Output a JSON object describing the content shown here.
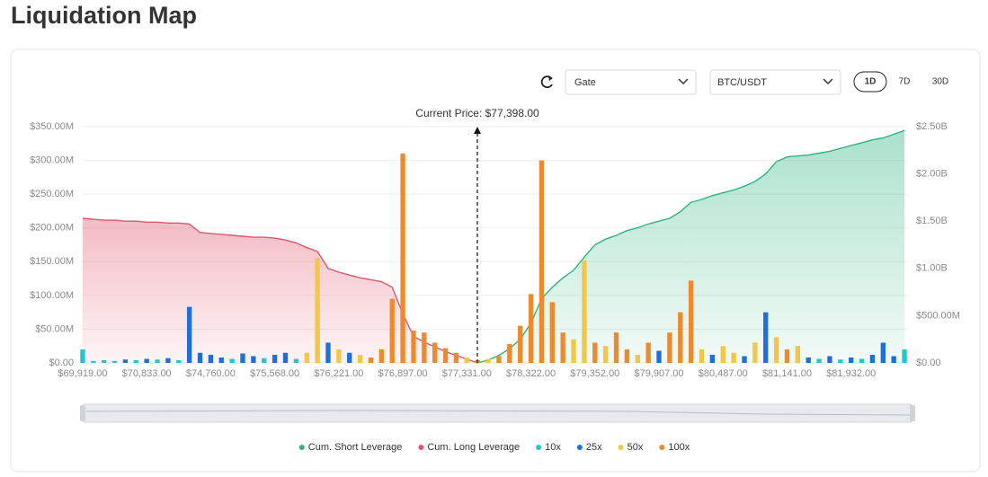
{
  "page_title": "Liquidation Map",
  "controls": {
    "exchange": "Gate",
    "pair": "BTC/USDT",
    "ranges": [
      "1D",
      "7D",
      "30D"
    ],
    "selected_range": "1D"
  },
  "chart_data": {
    "type": "bar",
    "annotation": "Current Price: $77,398.00",
    "categories": [
      "$69,919.00",
      null,
      null,
      null,
      null,
      null,
      "$70,833.00",
      null,
      null,
      null,
      null,
      null,
      "$74,760.00",
      null,
      null,
      null,
      null,
      null,
      "$75,568.00",
      null,
      null,
      null,
      null,
      null,
      "$76,221.00",
      null,
      null,
      null,
      null,
      null,
      "$76,897.00",
      null,
      null,
      null,
      null,
      null,
      "$77,331.00",
      null,
      null,
      null,
      null,
      null,
      "$78,322.00",
      null,
      null,
      null,
      null,
      null,
      "$79,352.00",
      null,
      null,
      null,
      null,
      null,
      "$79,907.00",
      null,
      null,
      null,
      null,
      null,
      "$80,487.00",
      null,
      null,
      null,
      null,
      null,
      "$81,141.00",
      null,
      null,
      null,
      null,
      null,
      "$81,932.00",
      null,
      null,
      null,
      null,
      null
    ],
    "ylim": [
      0,
      350000000
    ],
    "yticks": [
      {
        "value": 0,
        "label": "$0.00"
      },
      {
        "value": 50000000,
        "label": "$50.00M"
      },
      {
        "value": 100000000,
        "label": "$100.00M"
      },
      {
        "value": 150000000,
        "label": "$150.00M"
      },
      {
        "value": 200000000,
        "label": "$200.00M"
      },
      {
        "value": 250000000,
        "label": "$250.00M"
      },
      {
        "value": 300000000,
        "label": "$300.00M"
      },
      {
        "value": 350000000,
        "label": "$350.00M"
      }
    ],
    "y2lim": [
      0,
      2500000000
    ],
    "y2ticks": [
      {
        "value": 0,
        "label": "$0.00"
      },
      {
        "value": 500000000,
        "label": "$500.00M"
      },
      {
        "value": 1000000000,
        "label": "$1.00B"
      },
      {
        "value": 1500000000,
        "label": "$1.50B"
      },
      {
        "value": 2000000000,
        "label": "$2.00B"
      },
      {
        "value": 2500000000,
        "label": "$2.50B"
      }
    ],
    "grid": true,
    "legend": "bottom",
    "series": [
      {
        "name": "Cum. Short Leverage",
        "type": "area",
        "axis": "y2",
        "color": "#2db57f",
        "values": [
          null,
          null,
          null,
          null,
          null,
          null,
          null,
          null,
          null,
          null,
          null,
          null,
          null,
          null,
          null,
          null,
          null,
          null,
          null,
          null,
          null,
          null,
          null,
          null,
          null,
          null,
          null,
          null,
          null,
          null,
          null,
          null,
          null,
          null,
          null,
          null,
          null,
          0,
          30000000,
          80000000,
          150000000,
          250000000,
          420000000,
          680000000,
          800000000,
          900000000,
          980000000,
          1120000000,
          1250000000,
          1310000000,
          1350000000,
          1400000000,
          1430000000,
          1470000000,
          1500000000,
          1530000000,
          1600000000,
          1700000000,
          1730000000,
          1770000000,
          1800000000,
          1830000000,
          1870000000,
          1920000000,
          2000000000,
          2130000000,
          2180000000,
          2190000000,
          2200000000,
          2220000000,
          2240000000,
          2270000000,
          2300000000,
          2330000000,
          2360000000,
          2380000000,
          2420000000,
          2460000000
        ]
      },
      {
        "name": "Cum. Long Leverage",
        "type": "area",
        "axis": "y2",
        "color": "#e0566a",
        "values": [
          1530000000,
          1520000000,
          1510000000,
          1510000000,
          1500000000,
          1500000000,
          1490000000,
          1490000000,
          1480000000,
          1480000000,
          1470000000,
          1380000000,
          1370000000,
          1360000000,
          1350000000,
          1340000000,
          1330000000,
          1330000000,
          1320000000,
          1300000000,
          1270000000,
          1220000000,
          1180000000,
          1000000000,
          960000000,
          930000000,
          900000000,
          880000000,
          860000000,
          800000000,
          520000000,
          280000000,
          220000000,
          170000000,
          120000000,
          80000000,
          40000000,
          0,
          null,
          null,
          null,
          null,
          null,
          null,
          null,
          null,
          null,
          null,
          null,
          null,
          null,
          null,
          null,
          null,
          null,
          null,
          null,
          null,
          null,
          null,
          null,
          null,
          null,
          null,
          null,
          null,
          null,
          null,
          null,
          null,
          null,
          null,
          null,
          null,
          null,
          null,
          null,
          null
        ]
      },
      {
        "name": "10x",
        "type": "bar",
        "color": "#22c6d3",
        "values": [
          20000000,
          3000000,
          4000000,
          3000000,
          null,
          4000000,
          null,
          5000000,
          null,
          4000000,
          null,
          null,
          null,
          null,
          6000000,
          null,
          null,
          7000000,
          null,
          null,
          6000000,
          null,
          null,
          null,
          null,
          null,
          null,
          null,
          null,
          null,
          null,
          null,
          null,
          null,
          null,
          null,
          null,
          null,
          null,
          null,
          null,
          null,
          null,
          null,
          null,
          null,
          null,
          null,
          null,
          null,
          null,
          null,
          null,
          null,
          null,
          null,
          null,
          null,
          null,
          null,
          null,
          null,
          null,
          null,
          null,
          null,
          null,
          null,
          null,
          6000000,
          null,
          5000000,
          null,
          6000000,
          null,
          null,
          null,
          20000000
        ]
      },
      {
        "name": "25x",
        "type": "bar",
        "color": "#1f6fd6",
        "values": [
          null,
          null,
          null,
          null,
          5000000,
          null,
          6000000,
          null,
          7000000,
          null,
          83000000,
          15000000,
          12000000,
          8000000,
          null,
          14000000,
          10000000,
          null,
          12000000,
          15000000,
          null,
          null,
          null,
          30000000,
          null,
          15000000,
          null,
          null,
          null,
          null,
          null,
          null,
          null,
          null,
          null,
          null,
          null,
          null,
          null,
          null,
          null,
          null,
          null,
          null,
          null,
          null,
          null,
          null,
          null,
          null,
          null,
          null,
          null,
          null,
          18000000,
          null,
          null,
          null,
          null,
          12000000,
          null,
          null,
          10000000,
          null,
          75000000,
          null,
          null,
          null,
          8000000,
          null,
          10000000,
          null,
          8000000,
          null,
          12000000,
          30000000,
          10000000,
          null
        ]
      },
      {
        "name": "50x",
        "type": "bar",
        "color": "#f4c647",
        "values": [
          null,
          null,
          null,
          null,
          null,
          null,
          null,
          null,
          null,
          null,
          null,
          null,
          null,
          null,
          null,
          null,
          null,
          null,
          null,
          null,
          null,
          15000000,
          155000000,
          null,
          20000000,
          null,
          12000000,
          null,
          null,
          null,
          null,
          null,
          null,
          null,
          null,
          null,
          8000000,
          null,
          6000000,
          null,
          null,
          null,
          null,
          null,
          null,
          null,
          35000000,
          152000000,
          null,
          25000000,
          null,
          null,
          12000000,
          null,
          null,
          null,
          null,
          null,
          20000000,
          null,
          25000000,
          15000000,
          null,
          30000000,
          null,
          38000000,
          null,
          25000000,
          null,
          null,
          null,
          null,
          null,
          null,
          null,
          null,
          null,
          null
        ]
      },
      {
        "name": "100x",
        "type": "bar",
        "color": "#ee8a2e",
        "values": [
          null,
          null,
          null,
          null,
          null,
          null,
          null,
          null,
          null,
          null,
          null,
          null,
          null,
          null,
          null,
          null,
          null,
          null,
          null,
          null,
          null,
          null,
          null,
          null,
          null,
          null,
          null,
          8000000,
          20000000,
          95000000,
          310000000,
          48000000,
          45000000,
          30000000,
          22000000,
          15000000,
          null,
          4000000,
          null,
          10000000,
          28000000,
          55000000,
          102000000,
          300000000,
          90000000,
          45000000,
          null,
          null,
          30000000,
          null,
          45000000,
          20000000,
          null,
          30000000,
          null,
          45000000,
          75000000,
          122000000,
          null,
          null,
          null,
          null,
          null,
          null,
          null,
          null,
          20000000,
          null,
          null,
          null,
          null,
          null,
          null,
          null,
          null,
          null,
          null,
          null
        ]
      }
    ]
  }
}
